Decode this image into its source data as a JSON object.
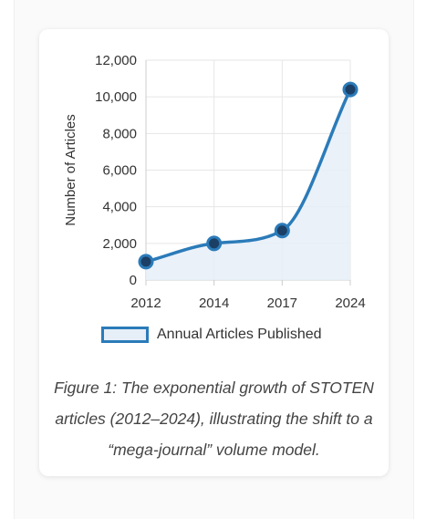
{
  "chart_data": {
    "type": "line",
    "x": [
      "2012",
      "2014",
      "2017",
      "2024"
    ],
    "series": [
      {
        "name": "Annual Articles Published",
        "values": [
          1000,
          2000,
          2700,
          10400
        ]
      }
    ],
    "xlabel": "",
    "ylabel": "Number of Articles",
    "ylim": [
      0,
      12000
    ],
    "yticks": [
      "0",
      "2,000",
      "4,000",
      "6,000",
      "8,000",
      "10,000",
      "12,000"
    ],
    "grid": true,
    "fill": true,
    "legend_position": "bottom",
    "colors": {
      "line": "#2b7bb9",
      "fill": "#e6eef8",
      "marker": "#1c3f66",
      "grid": "#e6e6e6"
    }
  },
  "caption": "Figure 1: The exponential growth of STOTEN articles (2012–2024), illustrating the shift to a “mega-journal” volume model."
}
